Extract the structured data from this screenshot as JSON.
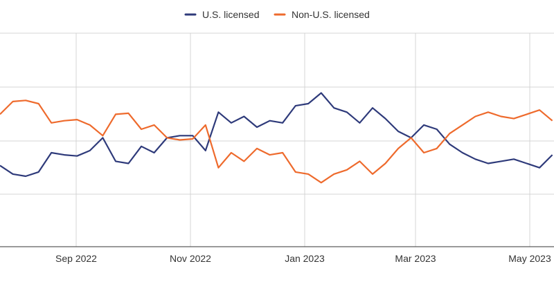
{
  "chart_data": {
    "type": "line",
    "x_ticks": [
      "Sep 2022",
      "Nov 2022",
      "Jan 2023",
      "Mar 2023",
      "May 2023"
    ],
    "grid": true,
    "legend_position": "top-center",
    "series": [
      {
        "name": "U.S. licensed",
        "color": "#2e3a7a",
        "values": [
          38,
          34,
          33,
          35,
          44,
          43,
          42.5,
          45,
          51,
          40,
          39,
          47,
          44,
          51,
          52,
          52,
          45,
          63,
          58,
          61,
          56,
          59,
          58,
          66,
          67,
          72,
          65,
          63,
          58,
          65,
          60,
          54,
          51,
          57,
          55,
          48,
          44,
          41,
          39,
          40,
          41,
          39,
          37,
          43
        ]
      },
      {
        "name": "Non-U.S. licensed",
        "color": "#ee6a2c",
        "values": [
          62,
          68,
          68.5,
          67,
          58,
          59,
          59.5,
          57,
          52,
          62,
          62.5,
          55,
          57,
          51,
          50,
          50.5,
          57,
          37,
          44,
          40,
          46,
          43,
          44,
          35,
          34,
          30,
          34,
          36,
          40,
          34,
          39,
          46,
          51,
          44,
          46,
          53,
          57,
          61,
          63,
          61,
          60,
          62,
          64,
          59
        ]
      }
    ]
  }
}
